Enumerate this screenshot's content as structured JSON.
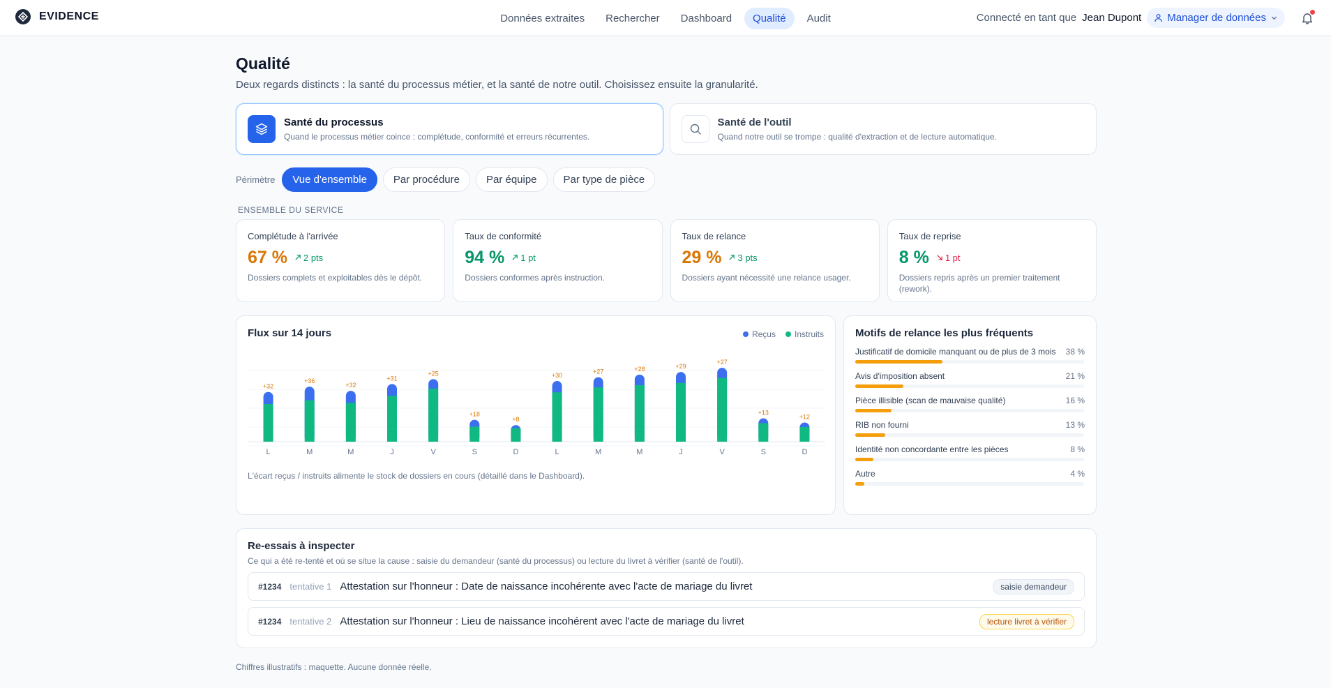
{
  "brand": {
    "name": "EVIDENCE"
  },
  "nav": {
    "tabs": [
      {
        "label": "Données extraites"
      },
      {
        "label": "Rechercher"
      },
      {
        "label": "Dashboard"
      },
      {
        "label": "Qualité",
        "active": true
      },
      {
        "label": "Audit"
      }
    ]
  },
  "user": {
    "prefix": "Connecté en tant que",
    "name": "Jean Dupont",
    "role": "Manager de données"
  },
  "page": {
    "title": "Qualité",
    "subtitle": "Deux regards distincts : la santé du processus métier, et la santé de notre outil. Choisissez ensuite la granularité."
  },
  "health": [
    {
      "title": "Santé du processus",
      "desc": "Quand le processus métier coince : complétude, conformité et erreurs récurrentes.",
      "icon": "layers-icon",
      "active": true
    },
    {
      "title": "Santé de l'outil",
      "desc": "Quand notre outil se trompe : qualité d'extraction et de lecture automatique.",
      "icon": "search-icon",
      "active": false
    }
  ],
  "scope": {
    "label": "Périmètre",
    "chips": [
      "Vue d'ensemble",
      "Par procédure",
      "Par équipe",
      "Par type de pièce"
    ],
    "active": 0
  },
  "section_label": "ENSEMBLE DU SERVICE",
  "kpis": [
    {
      "title": "Complétude à l'arrivée",
      "value": "67 %",
      "delta": "2 pts",
      "direction": "up",
      "color": "#d97706",
      "delta_color": "#059669",
      "desc": "Dossiers complets et exploitables dès le dépôt."
    },
    {
      "title": "Taux de conformité",
      "value": "94 %",
      "delta": "1 pt",
      "direction": "up",
      "color": "#059669",
      "delta_color": "#059669",
      "desc": "Dossiers conformes après instruction."
    },
    {
      "title": "Taux de relance",
      "value": "29 %",
      "delta": "3 pts",
      "direction": "up",
      "color": "#d97706",
      "delta_color": "#059669",
      "desc": "Dossiers ayant nécessité une relance usager."
    },
    {
      "title": "Taux de reprise",
      "value": "8 %",
      "delta": "1 pt",
      "direction": "down",
      "color": "#059669",
      "delta_color": "#e11d48",
      "desc": "Dossiers repris après un premier traitement (rework)."
    }
  ],
  "flux": {
    "title": "Flux sur 14 jours",
    "note": "L'écart reçus / instruits alimente le stock de dossiers en cours (détaillé dans le Dashboard).",
    "colors": {
      "recus": "#3b6ff0",
      "instruits": "#10b981",
      "gap_label": "#d97706"
    }
  },
  "chart_data": {
    "type": "bar",
    "categories": [
      "L",
      "M",
      "M",
      "J",
      "V",
      "S",
      "D",
      "L",
      "M",
      "M",
      "J",
      "V",
      "S",
      "D"
    ],
    "series": [
      {
        "name": "Reçus",
        "values": [
          132,
          146,
          135,
          153,
          166,
          58,
          44,
          161,
          171,
          178,
          185,
          196,
          62,
          51
        ]
      },
      {
        "name": "Instruits",
        "values": [
          100,
          110,
          103,
          122,
          141,
          40,
          36,
          131,
          144,
          150,
          156,
          169,
          49,
          39
        ]
      }
    ],
    "labels": [
      "+32",
      "+36",
      "+32",
      "+31",
      "+25",
      "+18",
      "+8",
      "+30",
      "+27",
      "+28",
      "+29",
      "+27",
      "+13",
      "+12"
    ],
    "ylim": [
      0,
      200
    ],
    "legend": "top-right",
    "grid": true
  },
  "motifs": {
    "title": "Motifs de relance les plus fréquents",
    "items": [
      {
        "label": "Justificatif de domicile manquant ou de plus de 3 mois",
        "pct": "38 %",
        "value": 38
      },
      {
        "label": "Avis d'imposition absent",
        "pct": "21 %",
        "value": 21
      },
      {
        "label": "Pièce illisible (scan de mauvaise qualité)",
        "pct": "16 %",
        "value": 16
      },
      {
        "label": "RIB non fourni",
        "pct": "13 %",
        "value": 13
      },
      {
        "label": "Identité non concordante entre les pièces",
        "pct": "8 %",
        "value": 8
      },
      {
        "label": "Autre",
        "pct": "4 %",
        "value": 4
      }
    ]
  },
  "retries": {
    "title": "Re-essais à inspecter",
    "subtitle": "Ce qui a été re-tenté et où se situe la cause : saisie du demandeur (santé du processus) ou lecture du livret à vérifier (santé de l'outil).",
    "rows": [
      {
        "id": "#1234",
        "attempt": "tentative 1",
        "text": "Attestation sur l'honneur : Date de naissance incohérente avec l'acte de mariage du livret",
        "tag": "saisie demandeur"
      },
      {
        "id": "#1234",
        "attempt": "tentative 2",
        "text": "Attestation sur l'honneur : Lieu de naissance incohérent avec l'acte de mariage du livret",
        "tag": "lecture livret à vérifier"
      }
    ]
  },
  "footer": "Chiffres illustratifs : maquette. Aucune donnée réelle."
}
